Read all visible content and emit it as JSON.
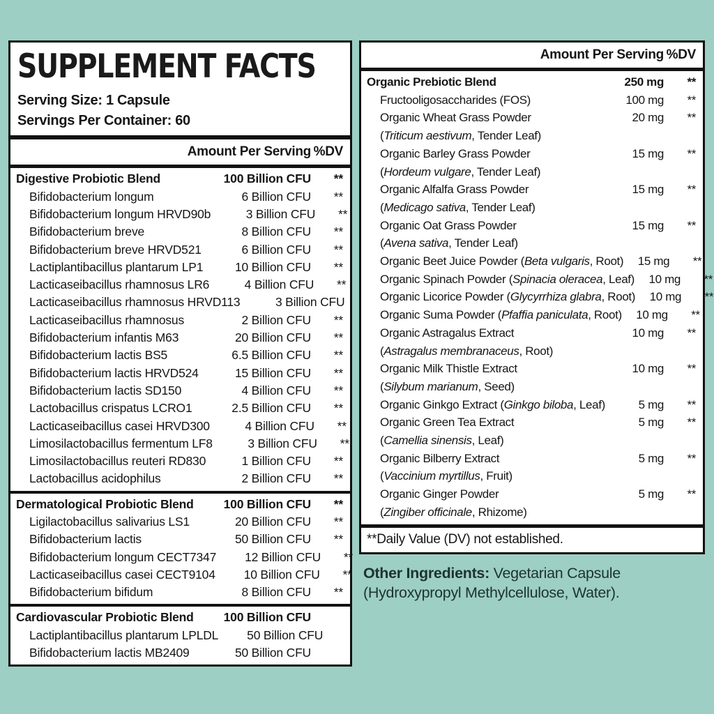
{
  "page_bg": "#9dcfc4",
  "panel_border_color": "#121212",
  "text_color": "#161616",
  "left_panel": {
    "title": "SUPPLEMENT FACTS",
    "serving_size": "Serving Size: 1 Capsule",
    "servings_per_container": "Servings Per Container: 60",
    "column_header": {
      "amount": "Amount Per Serving",
      "dv": "%DV"
    },
    "sections": [
      {
        "header": {
          "text": "Digestive Probiotic Blend",
          "amount": "100 Billion CFU",
          "dv": "**"
        },
        "rows": [
          {
            "text": "Bifidobacterium longum",
            "amount": "6 Billion CFU",
            "dv": "**"
          },
          {
            "text": "Bifidobacterium longum HRVD90b",
            "amount": "3 Billion CFU",
            "dv": "**"
          },
          {
            "text": "Bifidobacterium breve",
            "amount": "8 Billion CFU",
            "dv": "**"
          },
          {
            "text": "Bifidobacterium breve HRVD521",
            "amount": "6 Billion CFU",
            "dv": "**"
          },
          {
            "text": "Lactiplantibacillus plantarum LP1",
            "amount": "10 Billion CFU",
            "dv": "**"
          },
          {
            "text": "Lacticaseibacillus rhamnosus LR6",
            "amount": "4 Billion CFU",
            "dv": "**"
          },
          {
            "text": "Lacticaseibacillus rhamnosus HRVD113",
            "amount": "3 Billion CFU",
            "dv": "**"
          },
          {
            "text": "Lacticaseibacillus rhamnosus",
            "amount": "2 Billion CFU",
            "dv": "**"
          },
          {
            "text": "Bifidobacterium infantis M63",
            "amount": "20 Billion CFU",
            "dv": "**"
          },
          {
            "text": "Bifidobacterium lactis BS5",
            "amount": "6.5 Billion CFU",
            "dv": "**"
          },
          {
            "text": "Bifidobacterium lactis HRVD524",
            "amount": "15 Billion CFU",
            "dv": "**"
          },
          {
            "text": "Bifidobacterium lactis SD150",
            "amount": "4 Billion CFU",
            "dv": "**"
          },
          {
            "text": "Lactobacillus crispatus LCRO1",
            "amount": "2.5 Billion CFU",
            "dv": "**"
          },
          {
            "text": "Lacticaseibacillus casei HRVD300",
            "amount": "4 Billion CFU",
            "dv": "**"
          },
          {
            "text": "Limosilactobacillus fermentum LF8",
            "amount": "3 Billion CFU",
            "dv": "**"
          },
          {
            "text": "Limosilactobacillus reuteri RD830",
            "amount": "1 Billion CFU",
            "dv": "**"
          },
          {
            "text": "Lactobacillus acidophilus",
            "amount": "2 Billion CFU",
            "dv": "**"
          }
        ]
      },
      {
        "header": {
          "text": "Dermatological Probiotic Blend",
          "amount": "100 Billion CFU",
          "dv": "**"
        },
        "rows": [
          {
            "text": "Ligilactobacillus salivarius LS1",
            "amount": "20 Billion CFU",
            "dv": "**"
          },
          {
            "text": "Bifidobacterium lactis",
            "amount": "50 Billion CFU",
            "dv": "**"
          },
          {
            "text": "Bifidobacterium longum CECT7347",
            "amount": "12 Billion CFU",
            "dv": "**"
          },
          {
            "text": "Lacticaseibacillus casei CECT9104",
            "amount": "10 Billion CFU",
            "dv": "**"
          },
          {
            "text": "Bifidobacterium bifidum",
            "amount": "8 Billion CFU",
            "dv": "**"
          }
        ]
      },
      {
        "header": {
          "text": "Cardiovascular Probiotic Blend",
          "amount": "100 Billion CFU",
          "dv": ""
        },
        "rows": [
          {
            "text": "Lactiplantibacillus plantarum LPLDL",
            "amount": "50 Billion CFU",
            "dv": ""
          },
          {
            "text": "Bifidobacterium lactis MB2409",
            "amount": "50 Billion CFU",
            "dv": ""
          }
        ]
      }
    ]
  },
  "right_panel": {
    "column_header": {
      "amount": "Amount Per Serving",
      "dv": "%DV"
    },
    "section": {
      "header": {
        "text": "Organic Prebiotic Blend",
        "amount": "250 mg",
        "dv": "**"
      },
      "rows": [
        {
          "text": "Fructooligosaccharides (FOS)",
          "amount": "100 mg",
          "dv": "**"
        },
        {
          "text": "Organic Wheat Grass Powder",
          "latin": "Triticum aestivum",
          "part": "Tender Leaf",
          "latin_placement": "newline",
          "amount": "20 mg",
          "dv": "**"
        },
        {
          "text": "Organic Barley Grass Powder",
          "latin": "Hordeum vulgare",
          "part": "Tender Leaf",
          "latin_placement": "newline",
          "amount": "15 mg",
          "dv": "**"
        },
        {
          "text": "Organic Alfalfa Grass Powder",
          "latin": "Medicago sativa",
          "part": "Tender Leaf",
          "latin_placement": "newline",
          "amount": "15 mg",
          "dv": "**"
        },
        {
          "text": "Organic Oat Grass Powder",
          "latin": "Avena sativa",
          "part": "Tender Leaf",
          "latin_placement": "newline",
          "amount": "15 mg",
          "dv": "**"
        },
        {
          "text": "Organic Beet Juice Powder",
          "latin": "Beta vulgaris",
          "part": "Root",
          "latin_placement": "inline",
          "amount": "15 mg",
          "dv": "**"
        },
        {
          "text": "Organic Spinach Powder",
          "latin": "Spinacia oleracea",
          "part": "Leaf",
          "latin_placement": "inline",
          "amount": "10 mg",
          "dv": "**"
        },
        {
          "text": "Organic Licorice Powder",
          "latin": "Glycyrrhiza glabra",
          "part": "Root",
          "latin_placement": "inline",
          "amount": "10 mg",
          "dv": "**"
        },
        {
          "text": "Organic Suma Powder",
          "latin": "Pfaffia paniculata",
          "part": "Root",
          "latin_placement": "inline",
          "amount": "10 mg",
          "dv": "**"
        },
        {
          "text": "Organic Astragalus Extract",
          "latin": "Astragalus membranaceus",
          "part": "Root",
          "latin_placement": "newline",
          "amount": "10 mg",
          "dv": "**"
        },
        {
          "text": "Organic Milk Thistle Extract",
          "latin": "Silybum marianum",
          "part": "Seed",
          "latin_placement": "newline",
          "amount": "10 mg",
          "dv": "**"
        },
        {
          "text": "Organic Ginkgo Extract",
          "latin": "Ginkgo biloba",
          "part": "Leaf",
          "latin_placement": "inline",
          "amount": "5 mg",
          "dv": "**"
        },
        {
          "text": "Organic Green Tea Extract",
          "latin": "Camellia sinensis",
          "part": "Leaf",
          "latin_placement": "newline",
          "amount": "5 mg",
          "dv": "**"
        },
        {
          "text": "Organic Bilberry Extract",
          "latin": "Vaccinium myrtillus",
          "part": "Fruit",
          "latin_placement": "newline",
          "amount": "5 mg",
          "dv": "**"
        },
        {
          "text": "Organic Ginger Powder",
          "latin": "Zingiber officinale",
          "part": "Rhizome",
          "latin_placement": "newline",
          "amount": "5 mg",
          "dv": "**"
        }
      ]
    },
    "footnote": "**Daily Value (DV) not established."
  },
  "other_ingredients": {
    "label": "Other Ingredients:",
    "text": " Vegetarian Capsule (Hydroxypropyl Methylcellulose, Water)."
  }
}
